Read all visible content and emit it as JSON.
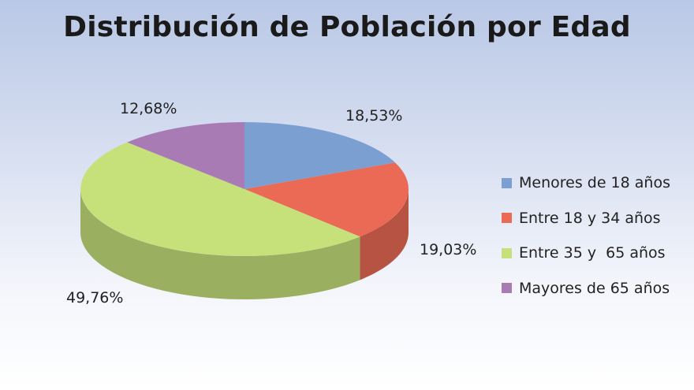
{
  "chart_data": {
    "type": "pie",
    "title": "Distribución de Población por Edad",
    "categories": [
      "Menores de 18 años",
      "Entre 18 y 34 años",
      "Entre 35 y  65 años",
      "Mayores de 65 años"
    ],
    "values": [
      18.53,
      19.03,
      49.76,
      12.68
    ],
    "data_labels": [
      "18,53%",
      "19,03%",
      "49,76%",
      "12,68%"
    ],
    "colors": [
      "#7a9fd0",
      "#ea6a55",
      "#c6e07a",
      "#a97bb5"
    ],
    "legend_position": "right",
    "style": "3d"
  }
}
